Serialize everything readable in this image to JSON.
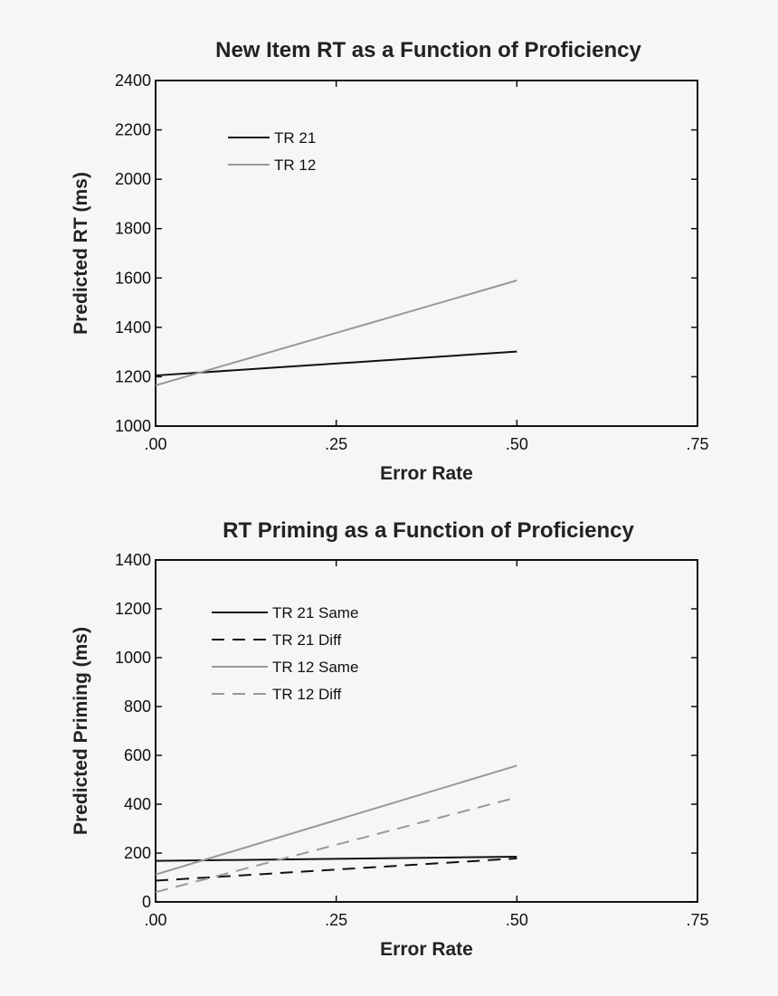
{
  "chart_data": [
    {
      "type": "line",
      "title": "New Item RT as a Function of Proficiency",
      "xlabel": "Error Rate",
      "ylabel": "Predicted RT (ms)",
      "xlim": [
        0,
        0.75
      ],
      "ylim": [
        1000,
        2400
      ],
      "xticks": [
        0,
        0.25,
        0.5,
        0.75
      ],
      "xtick_labels": [
        ".00",
        ".25",
        ".50",
        ".75"
      ],
      "yticks": [
        1000,
        1200,
        1400,
        1600,
        1800,
        2000,
        2200,
        2400
      ],
      "ytick_labels": [
        "1000",
        "1200",
        "1400",
        "1600",
        "1800",
        "2000",
        "2200",
        "2400"
      ],
      "grid": false,
      "legend_position": "top-left",
      "series": [
        {
          "name": "TR 21",
          "color": "#111111",
          "dash": "solid",
          "x": [
            0,
            0.5
          ],
          "y": [
            1205,
            1302
          ]
        },
        {
          "name": "TR 12",
          "color": "#999999",
          "dash": "solid",
          "x": [
            0,
            0.5
          ],
          "y": [
            1165,
            1590
          ]
        }
      ]
    },
    {
      "type": "line",
      "title": "RT Priming as a Function of Proficiency",
      "xlabel": "Error Rate",
      "ylabel": "Predicted Priming (ms)",
      "xlim": [
        0,
        0.75
      ],
      "ylim": [
        0,
        1400
      ],
      "xticks": [
        0,
        0.25,
        0.5,
        0.75
      ],
      "xtick_labels": [
        ".00",
        ".25",
        ".50",
        ".75"
      ],
      "yticks": [
        0,
        200,
        400,
        600,
        800,
        1000,
        1200,
        1400
      ],
      "ytick_labels": [
        "0",
        "200",
        "400",
        "600",
        "800",
        "1000",
        "1200",
        "1400"
      ],
      "grid": false,
      "legend_position": "top-left",
      "series": [
        {
          "name": "TR 21 Same",
          "color": "#111111",
          "dash": "solid",
          "x": [
            0,
            0.5
          ],
          "y": [
            168,
            185
          ]
        },
        {
          "name": "TR 21 Diff",
          "color": "#111111",
          "dash": "dashed",
          "x": [
            0,
            0.5
          ],
          "y": [
            87,
            178
          ]
        },
        {
          "name": "TR 12 Same",
          "color": "#999999",
          "dash": "solid",
          "x": [
            0,
            0.5
          ],
          "y": [
            112,
            558
          ]
        },
        {
          "name": "TR 12 Diff",
          "color": "#999999",
          "dash": "dashed",
          "x": [
            0,
            0.5
          ],
          "y": [
            40,
            428
          ]
        }
      ]
    }
  ]
}
